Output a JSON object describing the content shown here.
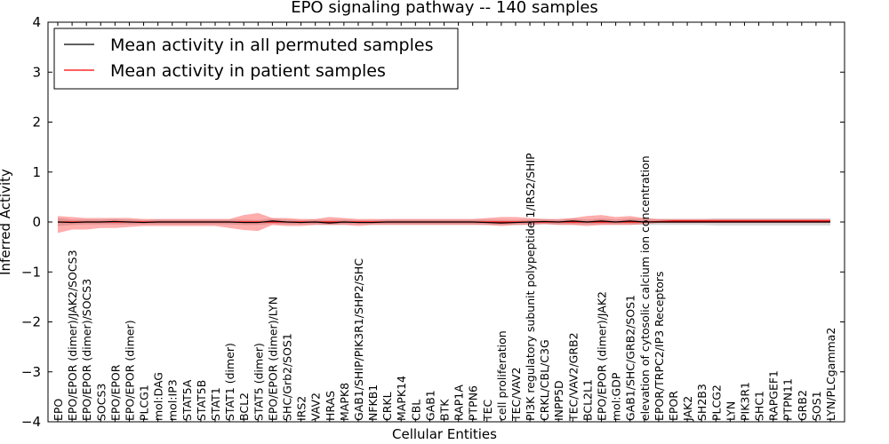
{
  "chart_data": {
    "type": "line",
    "title": "EPO signaling pathway -- 140 samples",
    "xlabel": "Cellular Entities",
    "ylabel": "Inferred Activity",
    "ylim": [
      -4,
      4
    ],
    "yticks": [
      -4,
      -3,
      -2,
      -1,
      0,
      1,
      2,
      3,
      4
    ],
    "ytick_labels": [
      "−4",
      "−3",
      "−2",
      "−1",
      "0",
      "1",
      "2",
      "3",
      "4"
    ],
    "grid": false,
    "legend_position": "top-left",
    "categories": [
      "EPO",
      "EPO/EPOR (dimer)/JAK2/SOCS3",
      "EPO/EPOR (dimer)/SOCS3",
      "SOCS3",
      "EPO/EPOR",
      "EPO/EPOR (dimer)",
      "PLCG1",
      "mol:DAG",
      "mol:IP3",
      "STAT5A",
      "STAT5B",
      "STAT1",
      "STAT1 (dimer)",
      "BCL2",
      "STAT5 (dimer)",
      "EPO/EPOR (dimer)/LYN",
      "SHC/Grb2/SOS1",
      "IRS2",
      "VAV2",
      "HRAS",
      "MAPK8",
      "GAB1/SHIP/PIK3R1/SHP2/SHC",
      "NFKB1",
      "CRKL",
      "MAPK14",
      "CBL",
      "GAB1",
      "BTK",
      "RAP1A",
      "PTPN6",
      "TEC",
      "cell proliferation",
      "TEC/VAV2",
      "PI3K regulatory subunit polypeptide 1/IRS2/SHIP",
      "CRKL/CBL/C3G",
      "INPP5D",
      "TEC/VAV2/GRB2",
      "BCL2L1",
      "EPO/EPOR (dimer)/JAK2",
      "mol:GDP",
      "GAB1/SHC/GRB2/SOS1",
      "elevation of cytosolic calcium ion concentration",
      "EPOR/TRPC2/IP3 Receptors",
      "EPOR",
      "JAK2",
      "SH2B3",
      "PLCG2",
      "LYN",
      "PIK3R1",
      "SHC1",
      "RAPGEF1",
      "PTPN11",
      "GRB2",
      "SOS1",
      "LYN/PLCgamma2"
    ],
    "series": [
      {
        "name": "Mean activity in all permuted samples",
        "color": "#000000",
        "values": [
          0,
          -0.01,
          0,
          0,
          0.01,
          0,
          -0.01,
          0,
          0,
          0,
          0,
          0,
          0,
          -0.01,
          -0.01,
          0.02,
          0,
          -0.01,
          0,
          -0.02,
          0,
          -0.01,
          -0.01,
          0,
          0,
          0,
          0,
          0,
          0,
          0,
          -0.01,
          -0.02,
          -0.01,
          0,
          0.01,
          0,
          0.02,
          0,
          0.02,
          0,
          0.02,
          0,
          0,
          0,
          0,
          0,
          0,
          0,
          0,
          0,
          0,
          0,
          0,
          0,
          0
        ],
        "band_lower": [
          -0.08,
          -0.06,
          -0.05,
          -0.05,
          -0.05,
          -0.05,
          -0.05,
          -0.05,
          -0.05,
          -0.05,
          -0.05,
          -0.05,
          -0.05,
          -0.06,
          -0.06,
          -0.04,
          -0.05,
          -0.05,
          -0.05,
          -0.06,
          -0.05,
          -0.05,
          -0.05,
          -0.05,
          -0.05,
          -0.05,
          -0.05,
          -0.05,
          -0.05,
          -0.05,
          -0.06,
          -0.06,
          -0.06,
          -0.05,
          -0.05,
          -0.05,
          -0.05,
          -0.05,
          -0.05,
          -0.05,
          -0.05,
          -0.06,
          -0.06,
          -0.06,
          -0.06,
          -0.06,
          -0.07,
          -0.07,
          -0.07,
          -0.07,
          -0.07,
          -0.07,
          -0.07,
          -0.07,
          -0.07
        ],
        "band_upper": [
          0.08,
          0.05,
          0.05,
          0.05,
          0.06,
          0.05,
          0.04,
          0.05,
          0.05,
          0.05,
          0.05,
          0.05,
          0.05,
          0.05,
          0.04,
          0.07,
          0.05,
          0.04,
          0.05,
          0.04,
          0.05,
          0.04,
          0.04,
          0.05,
          0.05,
          0.05,
          0.05,
          0.05,
          0.05,
          0.05,
          0.05,
          0.04,
          0.04,
          0.05,
          0.06,
          0.05,
          0.07,
          0.05,
          0.07,
          0.05,
          0.07,
          0.06,
          0.06,
          0.06,
          0.06,
          0.06,
          0.07,
          0.07,
          0.07,
          0.07,
          0.07,
          0.07,
          0.07,
          0.07,
          0.07
        ]
      },
      {
        "name": "Mean activity in patient samples",
        "color": "#ff0000",
        "values": [
          0,
          0,
          0,
          0,
          0,
          0,
          0,
          0,
          0,
          0,
          0,
          0,
          0,
          0,
          0,
          0,
          0,
          0,
          0,
          0,
          0,
          0,
          0,
          0,
          0,
          0,
          0,
          0,
          0,
          0,
          0,
          0,
          0,
          0,
          0,
          0,
          0,
          0,
          0,
          0,
          0,
          0,
          0.01,
          0.02,
          0.02,
          0.02,
          0.02,
          0.02,
          0.02,
          0.02,
          0.02,
          0.02,
          0.02,
          0.02,
          0.02
        ],
        "band_lower": [
          -0.22,
          -0.15,
          -0.15,
          -0.12,
          -0.12,
          -0.1,
          -0.08,
          -0.08,
          -0.08,
          -0.08,
          -0.08,
          -0.08,
          -0.12,
          -0.16,
          -0.18,
          -0.06,
          -0.08,
          -0.08,
          -0.06,
          -0.06,
          -0.06,
          -0.08,
          -0.06,
          -0.06,
          -0.06,
          -0.06,
          -0.06,
          -0.06,
          -0.06,
          -0.06,
          -0.06,
          -0.08,
          -0.06,
          -0.06,
          -0.04,
          -0.06,
          -0.06,
          -0.08,
          -0.06,
          -0.06,
          -0.06,
          -0.04,
          -0.02,
          -0.02,
          -0.02,
          -0.02,
          -0.02,
          -0.02,
          -0.02,
          -0.02,
          -0.02,
          -0.02,
          -0.02,
          -0.02,
          -0.02
        ],
        "band_upper": [
          0.12,
          0.1,
          0.08,
          0.08,
          0.08,
          0.08,
          0.06,
          0.06,
          0.06,
          0.06,
          0.06,
          0.06,
          0.06,
          0.14,
          0.18,
          0.08,
          0.08,
          0.06,
          0.06,
          0.1,
          0.08,
          0.06,
          0.06,
          0.06,
          0.06,
          0.06,
          0.06,
          0.06,
          0.06,
          0.06,
          0.08,
          0.1,
          0.1,
          0.08,
          0.06,
          0.06,
          0.08,
          0.12,
          0.14,
          0.1,
          0.12,
          0.08,
          0.06,
          0.06,
          0.06,
          0.06,
          0.06,
          0.06,
          0.06,
          0.06,
          0.06,
          0.06,
          0.06,
          0.06,
          0.06
        ]
      }
    ]
  }
}
